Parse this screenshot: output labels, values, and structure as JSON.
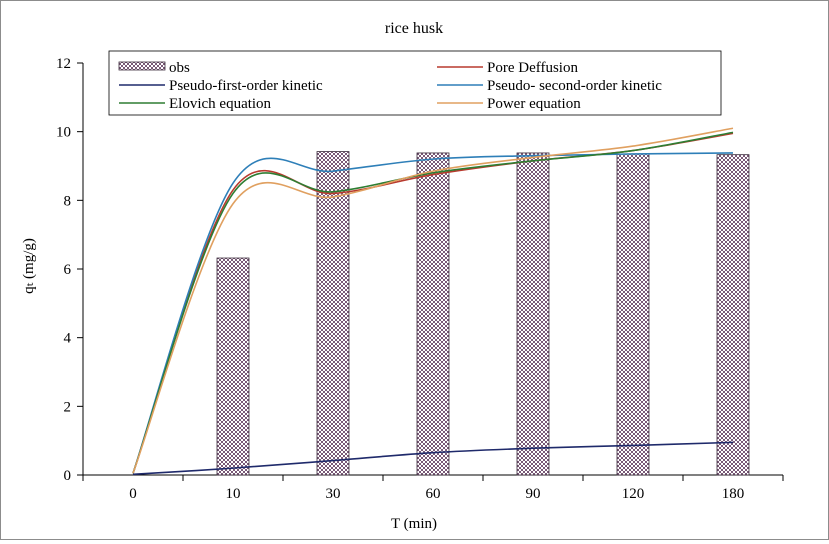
{
  "chart_data": {
    "type": "bar",
    "title": "rice husk",
    "xlabel": "T (min)",
    "ylabel": "qₜ (mg/g)",
    "categories": [
      "0",
      "10",
      "30",
      "60",
      "90",
      "120",
      "180"
    ],
    "ylim": [
      0,
      12
    ],
    "yticks": [
      "0",
      "2",
      "4",
      "6",
      "8",
      "10",
      "12"
    ],
    "grid": false,
    "legend_position": "top",
    "bar_series": {
      "name": "obs",
      "color": "#7a5a78",
      "values": [
        null,
        6.32,
        9.42,
        9.38,
        9.38,
        9.35,
        9.33
      ]
    },
    "line_series": [
      {
        "name": "Pore Deffusion",
        "color": "#b83a2e",
        "values": [
          0.05,
          8.3,
          8.2,
          8.75,
          9.15,
          9.45,
          9.95
        ]
      },
      {
        "name": "Pseudo-first-order kinetic",
        "color": "#1f2a6b",
        "values": [
          0.02,
          0.2,
          0.42,
          0.65,
          0.78,
          0.86,
          0.95
        ]
      },
      {
        "name": "Pseudo- second-order kinetic",
        "color": "#2e7fb8",
        "values": [
          0.05,
          8.5,
          8.85,
          9.2,
          9.3,
          9.35,
          9.38
        ]
      },
      {
        "name": "Elovich equation",
        "color": "#2e7d32",
        "values": [
          0.05,
          8.2,
          8.25,
          8.8,
          9.15,
          9.45,
          9.98
        ]
      },
      {
        "name": "Power equation",
        "color": "#e0a060",
        "values": [
          0.05,
          7.9,
          8.1,
          8.85,
          9.25,
          9.58,
          10.1
        ]
      }
    ]
  }
}
